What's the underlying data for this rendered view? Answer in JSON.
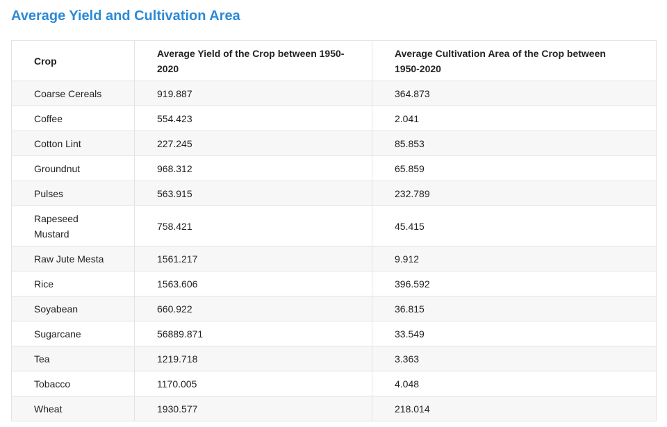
{
  "page": {
    "title": "Average Yield and Cultivation Area"
  },
  "chart_data": {
    "type": "table",
    "title": "Average Yield and Cultivation Area",
    "columns": [
      "Crop",
      "Average Yield of the Crop between 1950-2020",
      "Average Cultivation Area of the Crop between 1950-2020"
    ],
    "rows": [
      [
        "Coarse Cereals",
        "919.887",
        "364.873"
      ],
      [
        "Coffee",
        "554.423",
        "2.041"
      ],
      [
        "Cotton Lint",
        "227.245",
        "85.853"
      ],
      [
        "Groundnut",
        "968.312",
        "65.859"
      ],
      [
        "Pulses",
        "563.915",
        "232.789"
      ],
      [
        "Rapeseed Mustard",
        "758.421",
        "45.415"
      ],
      [
        "Raw Jute Mesta",
        "1561.217",
        "9.912"
      ],
      [
        "Rice",
        "1563.606",
        "396.592"
      ],
      [
        "Soyabean",
        "660.922",
        "36.815"
      ],
      [
        "Sugarcane",
        "56889.871",
        "33.549"
      ],
      [
        "Tea",
        "1219.718",
        "3.363"
      ],
      [
        "Tobacco",
        "1170.005",
        "4.048"
      ],
      [
        "Wheat",
        "1930.577",
        "218.014"
      ]
    ]
  }
}
